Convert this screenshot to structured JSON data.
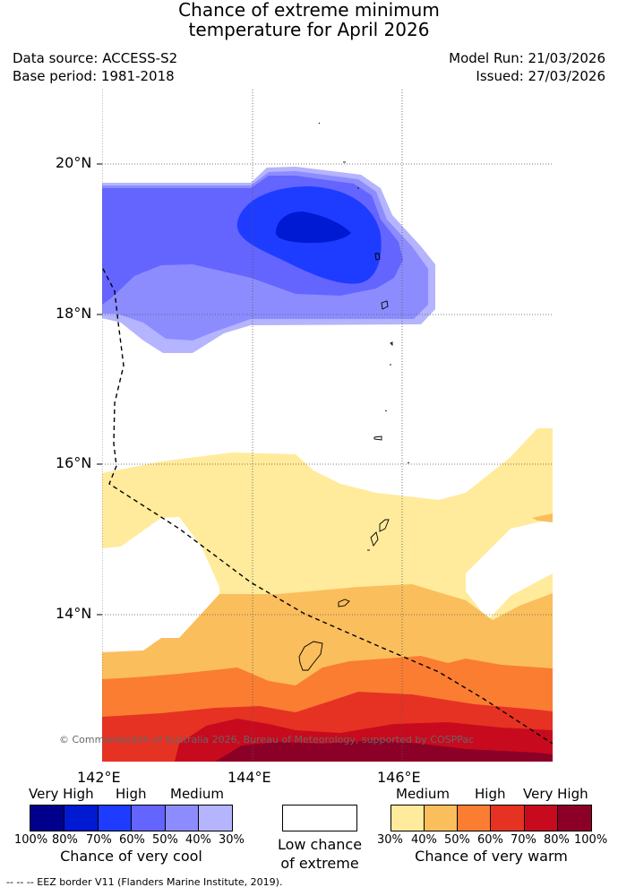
{
  "title": {
    "line1": "Chance of extreme minimum",
    "line2": "temperature for April 2026"
  },
  "meta": {
    "data_source": "Data source: ACCESS-S2",
    "base_period": "Base period: 1981-2018",
    "model_run": "Model Run: 21/03/2026",
    "issued": "Issued: 27/03/2026"
  },
  "map": {
    "lat_labels": [
      "20°N",
      "18°N",
      "16°N",
      "14°N"
    ],
    "lon_labels": [
      "142°E",
      "144°E",
      "146°E"
    ],
    "copyright": "© Commonwealth of Australia 2026, Bureau of Meteorology, supported by COSPPac"
  },
  "legend": {
    "cool": {
      "levels": [
        "Very High",
        "High",
        "Medium"
      ],
      "percents": [
        "100%",
        "80%",
        "70%",
        "60%",
        "50%",
        "40%",
        "30%"
      ],
      "caption": "Chance of very cool",
      "colors": [
        "#00008c",
        "#0019d2",
        "#1e3cff",
        "#6464ff",
        "#8c8cff",
        "#b4b4ff"
      ]
    },
    "neutral": {
      "line1": "Low chance",
      "line2": "of extreme"
    },
    "warm": {
      "levels": [
        "Medium",
        "High",
        "Very High"
      ],
      "percents": [
        "30%",
        "40%",
        "50%",
        "60%",
        "70%",
        "80%",
        "100%"
      ],
      "caption": "Chance of very warm",
      "colors": [
        "#ffeb9b",
        "#fbbe5c",
        "#fa7d32",
        "#e63223",
        "#c80a1e",
        "#8c0028"
      ]
    }
  },
  "footer": {
    "eez_note": "--  --  -- EEZ border V11 (Flanders Marine Institute, 2019)."
  }
}
